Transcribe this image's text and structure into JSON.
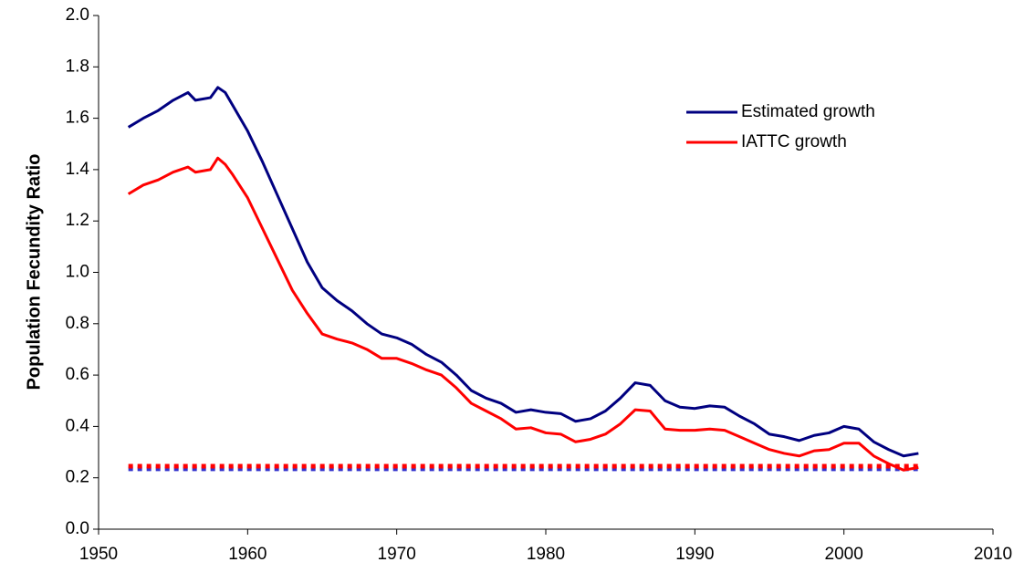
{
  "chart_data": {
    "type": "line",
    "y_label": "Population Fecundity Ratio",
    "x": [
      1952,
      1953,
      1954,
      1955,
      1956,
      1956.5,
      1957.5,
      1958,
      1958.5,
      1959,
      1960,
      1961,
      1962,
      1963,
      1964,
      1965,
      1966,
      1967,
      1968,
      1969,
      1970,
      1971,
      1972,
      1973,
      1974,
      1975,
      1976,
      1977,
      1978,
      1979,
      1980,
      1981,
      1982,
      1983,
      1984,
      1985,
      1986,
      1987,
      1988,
      1989,
      1990,
      1991,
      1992,
      1993,
      1994,
      1995,
      1996,
      1997,
      1998,
      1999,
      2000,
      2001,
      2002,
      2003,
      2004,
      2005
    ],
    "series": [
      {
        "name": "Estimated growth",
        "color": "#000080",
        "values": [
          1.565,
          1.6,
          1.63,
          1.67,
          1.7,
          1.67,
          1.68,
          1.72,
          1.7,
          1.65,
          1.55,
          1.43,
          1.3,
          1.17,
          1.04,
          0.94,
          0.89,
          0.85,
          0.8,
          0.76,
          0.745,
          0.72,
          0.68,
          0.65,
          0.6,
          0.54,
          0.51,
          0.49,
          0.455,
          0.465,
          0.455,
          0.45,
          0.42,
          0.43,
          0.46,
          0.51,
          0.57,
          0.56,
          0.5,
          0.475,
          0.47,
          0.48,
          0.475,
          0.44,
          0.41,
          0.37,
          0.36,
          0.345,
          0.365,
          0.375,
          0.4,
          0.39,
          0.34,
          0.31,
          0.285,
          0.295
        ]
      },
      {
        "name": "IATTC growth",
        "color": "#ff0000",
        "values": [
          1.305,
          1.34,
          1.36,
          1.39,
          1.41,
          1.39,
          1.4,
          1.445,
          1.42,
          1.38,
          1.29,
          1.17,
          1.05,
          0.93,
          0.84,
          0.76,
          0.74,
          0.725,
          0.7,
          0.665,
          0.665,
          0.645,
          0.62,
          0.6,
          0.55,
          0.49,
          0.46,
          0.43,
          0.39,
          0.395,
          0.375,
          0.37,
          0.34,
          0.35,
          0.37,
          0.41,
          0.465,
          0.46,
          0.39,
          0.385,
          0.385,
          0.39,
          0.385,
          0.36,
          0.335,
          0.31,
          0.295,
          0.285,
          0.305,
          0.31,
          0.335,
          0.335,
          0.285,
          0.255,
          0.23,
          0.24
        ]
      }
    ],
    "reference_lines": [
      {
        "value": 0.235,
        "color": "#3333cc",
        "xlim": [
          1952,
          2005
        ]
      },
      {
        "value": 0.245,
        "color": "#ff0000",
        "xlim": [
          1952,
          2005
        ]
      }
    ],
    "xlim": [
      1950,
      2010
    ],
    "xticks": [
      1950,
      1960,
      1970,
      1980,
      1990,
      2000,
      2010
    ],
    "ylim": [
      0,
      2
    ],
    "yticks": [
      {
        "value": 0,
        "label": "0.0"
      },
      0.2,
      0.4,
      0.6,
      0.8,
      {
        "value": 1,
        "label": "1.0"
      },
      1.2,
      1.4,
      1.6,
      1.8,
      {
        "value": 2,
        "label": "2.0"
      }
    ],
    "grid": false,
    "legend": "upper right"
  }
}
